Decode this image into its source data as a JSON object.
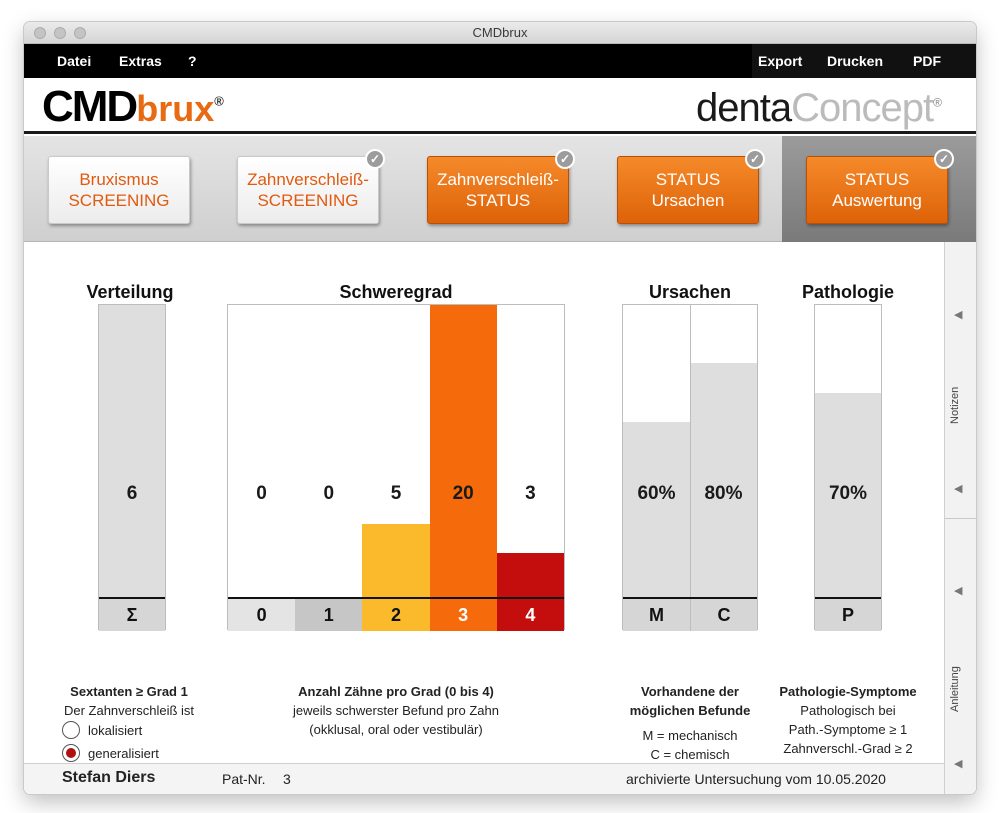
{
  "window": {
    "title": "CMDbrux"
  },
  "menu": {
    "left": [
      "Datei",
      "Extras",
      "?"
    ],
    "right": [
      "Export",
      "Drucken",
      "PDF"
    ]
  },
  "logo": {
    "left_main": "CMD",
    "left_accent": "brux",
    "left_reg": "®",
    "right_main": "denta",
    "right_accent": "Concept",
    "right_reg": "®"
  },
  "tabs": [
    {
      "line1": "Bruxismus",
      "line2": "SCREENING",
      "style": "white",
      "checked": false
    },
    {
      "line1": "Zahnverschleiß-",
      "line2": "SCREENING",
      "style": "white",
      "checked": true
    },
    {
      "line1": "Zahnverschleiß-",
      "line2": "STATUS",
      "style": "orange",
      "checked": true
    },
    {
      "line1": "STATUS",
      "line2": "Ursachen",
      "style": "orange",
      "checked": true
    },
    {
      "line1": "STATUS",
      "line2": "Auswertung",
      "style": "orange",
      "checked": true
    }
  ],
  "check_glyph": "✓",
  "verteilung": {
    "title": "Verteilung",
    "value": "6",
    "axis_label": "Σ",
    "caption_bold": "Sextanten ≥ Grad 1",
    "caption_text": "Der Zahnverschleiß ist",
    "options": [
      {
        "label": "lokalisiert",
        "selected": false
      },
      {
        "label": "generalisiert",
        "selected": true
      }
    ]
  },
  "schweregrad": {
    "title": "Schweregrad",
    "caption_bold": "Anzahl Zähne pro Grad (0 bis 4)",
    "caption_line2": "jeweils schwerster Befund pro Zahn",
    "caption_line3": "(okklusal, oral oder vestibulär)"
  },
  "ursachen": {
    "title": "Ursachen",
    "caption_bold1": "Vorhandene der",
    "caption_bold2": "möglichen Befunde",
    "caption_line3": "M = mechanisch",
    "caption_line4": "C = chemisch"
  },
  "pathologie": {
    "title": "Pathologie",
    "caption_bold": "Pathologie-Symptome",
    "caption_line2": "Pathologisch bei",
    "caption_line3": "Path.-Symptome ≥ 1",
    "caption_line4": "Zahnverschl.-Grad ≥ 2"
  },
  "chart_data": [
    {
      "type": "bar",
      "name_key": "verteilung",
      "categories": [
        "Σ"
      ],
      "values": [
        6
      ],
      "ylim": [
        0,
        6
      ],
      "colors": [
        "#dedede"
      ]
    },
    {
      "type": "bar",
      "name_key": "schweregrad",
      "categories": [
        "0",
        "1",
        "2",
        "3",
        "4"
      ],
      "values": [
        0,
        0,
        5,
        20,
        3
      ],
      "ylim": [
        0,
        20
      ],
      "colors": [
        "#dedede",
        "#c6c6c6",
        "#fbb92c",
        "#f56a0a",
        "#c40d0d"
      ]
    },
    {
      "type": "bar",
      "name_key": "ursachen",
      "categories": [
        "M",
        "C"
      ],
      "values": [
        60,
        80
      ],
      "value_labels": [
        "60%",
        "80%"
      ],
      "ylim": [
        0,
        100
      ],
      "colors": [
        "#dedede",
        "#dedede"
      ]
    },
    {
      "type": "bar",
      "name_key": "pathologie",
      "categories": [
        "P"
      ],
      "values": [
        70
      ],
      "value_labels": [
        "70%"
      ],
      "ylim": [
        0,
        100
      ],
      "colors": [
        "#dedede"
      ]
    }
  ],
  "sidebar": {
    "labels": [
      "Notizen",
      "Anleitung"
    ],
    "arrow": "◀"
  },
  "footer": {
    "patient_name": "Stefan Diers",
    "pat_nr_label": "Pat-Nr.",
    "pat_nr": "3",
    "archive_text": "archivierte Untersuchung vom 10.05.2020"
  }
}
